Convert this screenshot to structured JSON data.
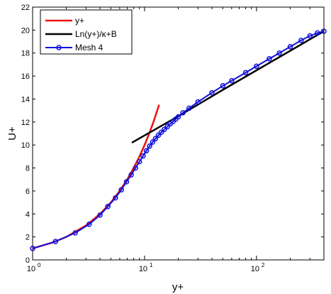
{
  "chart_data": {
    "type": "line",
    "xlabel": "y+",
    "ylabel": "U+",
    "xscale": "log",
    "xlim": [
      1,
      400
    ],
    "ylim": [
      0,
      22
    ],
    "grid": false,
    "legend_position": "top-left",
    "x_ticks": [
      {
        "value": 1,
        "base": "10",
        "exp": "0"
      },
      {
        "value": 10,
        "base": "10",
        "exp": "1"
      },
      {
        "value": 100,
        "base": "10",
        "exp": "2"
      }
    ],
    "y_ticks": [
      0,
      2,
      4,
      6,
      8,
      10,
      12,
      14,
      16,
      18,
      20,
      22
    ],
    "series": [
      {
        "name": "y+",
        "color": "#ee1111",
        "style": "line",
        "x": [
          1,
          1.5,
          2,
          3,
          4,
          5,
          6,
          7,
          8,
          9,
          10,
          11,
          12,
          13.5
        ],
        "y": [
          1,
          1.5,
          2,
          3,
          4,
          5,
          6,
          7,
          8,
          9,
          10,
          11,
          12,
          13.5
        ]
      },
      {
        "name": "Ln(y+)/κ+B",
        "color": "#000000",
        "style": "line",
        "x": [
          7.7,
          20,
          50,
          100,
          200,
          300,
          400
        ],
        "y": [
          10.2,
          12.5,
          14.8,
          16.5,
          18.2,
          19.2,
          19.9
        ]
      },
      {
        "name": "Mesh 4",
        "color": "#1111dd",
        "style": "line-circle",
        "x": [
          1,
          1.6,
          2.4,
          3.2,
          4.0,
          4.7,
          5.5,
          6.2,
          6.9,
          7.6,
          8.3,
          9.0,
          9.7,
          10.4,
          11.1,
          11.8,
          12.5,
          13.3,
          14.1,
          15,
          16,
          17,
          18,
          19,
          20,
          22,
          25,
          30,
          40,
          50,
          60,
          80,
          100,
          130,
          160,
          200,
          250,
          300,
          350,
          400
        ],
        "y": [
          1.0,
          1.6,
          2.35,
          3.1,
          3.9,
          4.65,
          5.4,
          6.1,
          6.8,
          7.4,
          8.0,
          8.55,
          9.05,
          9.5,
          9.9,
          10.25,
          10.55,
          10.85,
          11.1,
          11.35,
          11.6,
          11.85,
          12.05,
          12.25,
          12.45,
          12.8,
          13.2,
          13.75,
          14.55,
          15.15,
          15.6,
          16.3,
          16.85,
          17.5,
          18.0,
          18.55,
          19.1,
          19.5,
          19.75,
          19.9
        ]
      }
    ]
  }
}
